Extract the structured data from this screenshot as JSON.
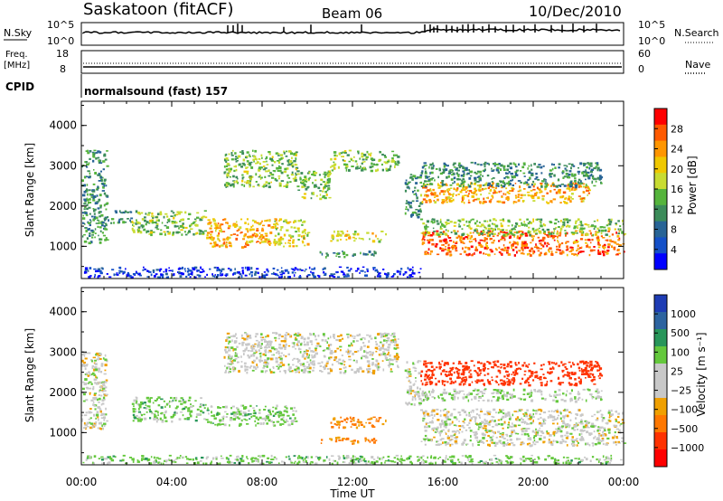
{
  "header": {
    "station": "Saskatoon (fitACF)",
    "beam": "Beam 06",
    "date": "10/Dec/2010"
  },
  "status_panels": {
    "nsky_label": "N.Sky",
    "nsky_ticks": [
      "10^5",
      "10^0"
    ],
    "nsearch_label": "N.Search",
    "nsearch_ticks": [
      "10^5",
      "10^0"
    ],
    "freq_label": "Freq.",
    "freq_unit": "[MHz]",
    "freq_ticks": [
      "18",
      "8"
    ],
    "nave_label": "Nave",
    "nave_ticks": [
      "60",
      "0"
    ],
    "cpid_label": "CPID",
    "cpid_text": "normalsound (fast) 157"
  },
  "chart_data": [
    {
      "type": "heatmap",
      "name": "power-panel",
      "ylabel": "Slant Range [km]",
      "yticks": [
        1000,
        2000,
        3000,
        4000
      ],
      "ylim": [
        200,
        4600
      ],
      "xlim": [
        0,
        24
      ],
      "colorbar": {
        "label": "Power [dB]",
        "ticks": [
          "28",
          "24",
          "20",
          "16",
          "12",
          "8",
          "4"
        ],
        "colors": [
          "#ff0000",
          "#ff5a00",
          "#ff9600",
          "#f0c800",
          "#c8dc32",
          "#55b43c",
          "#3c8c5a",
          "#286496",
          "#1450c8",
          "#0000ff"
        ]
      },
      "features": [
        {
          "t0": 0.0,
          "t1": 1.1,
          "r0": 1100,
          "r1": 3400,
          "value": 12
        },
        {
          "t0": 1.1,
          "t1": 2.2,
          "r0": 1600,
          "r1": 1900,
          "value": 12
        },
        {
          "t0": 2.2,
          "t1": 5.5,
          "r0": 1300,
          "r1": 1900,
          "value": 16
        },
        {
          "t0": 5.5,
          "t1": 8.5,
          "r0": 1000,
          "r1": 1700,
          "value": 24
        },
        {
          "t0": 8.5,
          "t1": 10.0,
          "r0": 1000,
          "r1": 1700,
          "value": 20
        },
        {
          "t0": 6.3,
          "t1": 9.5,
          "r0": 2500,
          "r1": 3400,
          "value": 16
        },
        {
          "t0": 9.5,
          "t1": 11.0,
          "r0": 2200,
          "r1": 2900,
          "value": 16
        },
        {
          "t0": 11.0,
          "t1": 14.0,
          "r0": 2900,
          "r1": 3400,
          "value": 16
        },
        {
          "t0": 10.5,
          "t1": 13.0,
          "r0": 750,
          "r1": 900,
          "value": 12
        },
        {
          "t0": 11.0,
          "t1": 13.5,
          "r0": 1150,
          "r1": 1400,
          "value": 20
        },
        {
          "t0": 14.3,
          "t1": 15.0,
          "r0": 1700,
          "r1": 2800,
          "value": 12
        },
        {
          "t0": 15.0,
          "t1": 24.0,
          "r0": 800,
          "r1": 1400,
          "value": 28
        },
        {
          "t0": 15.0,
          "t1": 24.0,
          "r0": 1300,
          "r1": 1700,
          "value": 16
        },
        {
          "t0": 15.0,
          "t1": 22.5,
          "r0": 2100,
          "r1": 2600,
          "value": 24
        },
        {
          "t0": 15.0,
          "t1": 23.0,
          "r0": 2500,
          "r1": 3100,
          "value": 12
        },
        {
          "t0": 0.0,
          "t1": 15.0,
          "r0": 250,
          "r1": 500,
          "value": 4
        }
      ]
    },
    {
      "type": "heatmap",
      "name": "velocity-panel",
      "ylabel": "Slant Range [km]",
      "yticks": [
        1000,
        2000,
        3000,
        4000
      ],
      "ylim": [
        200,
        4600
      ],
      "xlim": [
        0,
        24
      ],
      "xticks": [
        "00:00",
        "04:00",
        "08:00",
        "12:00",
        "16:00",
        "20:00",
        "00:00"
      ],
      "xlabel": "Time UT",
      "colorbar": {
        "label": "Velocity [m s⁻¹]",
        "ticks": [
          "1000",
          "500",
          "100",
          "25",
          "−25",
          "−100",
          "−500",
          "−1000"
        ],
        "colors": [
          "#1e3cb4",
          "#2d64a0",
          "#28965a",
          "#64c83c",
          "#c8c8c8",
          "#c8c8c8",
          "#f0a000",
          "#ff7800",
          "#ff3200",
          "#ff0000"
        ]
      },
      "features": [
        {
          "t0": 0.0,
          "t1": 1.1,
          "r0": 1100,
          "r1": 3000,
          "value": 0
        },
        {
          "t0": 2.2,
          "t1": 5.5,
          "r0": 1300,
          "r1": 1900,
          "value": 100
        },
        {
          "t0": 5.5,
          "t1": 9.5,
          "r0": 1200,
          "r1": 1700,
          "value": 100
        },
        {
          "t0": 6.3,
          "t1": 14.0,
          "r0": 2500,
          "r1": 3500,
          "value": 0
        },
        {
          "t0": 11.0,
          "t1": 13.5,
          "r0": 1150,
          "r1": 1400,
          "value": -200
        },
        {
          "t0": 10.5,
          "t1": 13.0,
          "r0": 750,
          "r1": 900,
          "value": -200
        },
        {
          "t0": 14.3,
          "t1": 15.0,
          "r0": 1700,
          "r1": 2800,
          "value": 0
        },
        {
          "t0": 15.0,
          "t1": 24.0,
          "r0": 700,
          "r1": 1600,
          "value": 0
        },
        {
          "t0": 15.0,
          "t1": 23.0,
          "r0": 2200,
          "r1": 2800,
          "value": -500
        },
        {
          "t0": 15.0,
          "t1": 23.0,
          "r0": 1800,
          "r1": 2100,
          "value": 50
        },
        {
          "t0": 0.0,
          "t1": 24.0,
          "r0": 250,
          "r1": 450,
          "value": 100
        }
      ]
    }
  ]
}
